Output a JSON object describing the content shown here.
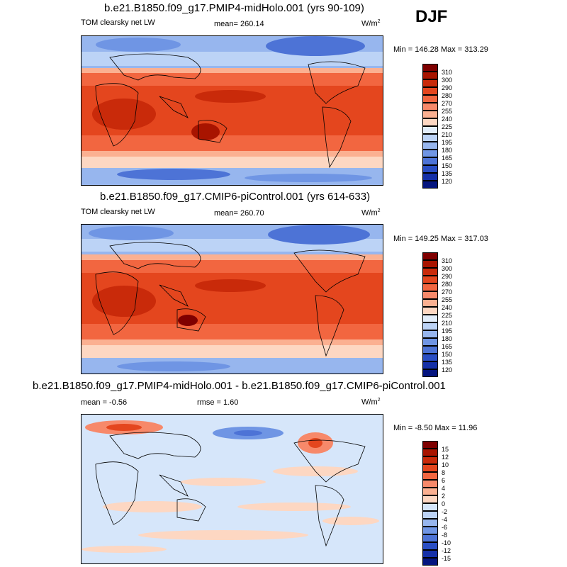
{
  "season": "DJF",
  "panels": [
    {
      "title": "b.e21.B1850.f09_g17.PMIP4-midHolo.001 (yrs 90-109)",
      "left": "TOM clearsky net LW",
      "mid": "mean= 260.14",
      "units": "W/m",
      "units_sup": "2",
      "minmax": "Min = 146.28 Max = 313.29",
      "levels": [
        "310",
        "300",
        "290",
        "280",
        "270",
        "255",
        "240",
        "225",
        "210",
        "195",
        "180",
        "165",
        "150",
        "135",
        "120"
      ],
      "colors": [
        "#7f0000",
        "#a81400",
        "#c92a0a",
        "#e4461e",
        "#f26640",
        "#f7896a",
        "#fbb091",
        "#fdd7c2",
        "#e2edfa",
        "#bcd3f6",
        "#97b6ee",
        "#6f95e4",
        "#4d73d6",
        "#2a4ec4",
        "#1530a8",
        "#05157f"
      ]
    },
    {
      "title": "b.e21.B1850.f09_g17.CMIP6-piControl.001 (yrs 614-633)",
      "left": "TOM clearsky net LW",
      "mid": "mean= 260.70",
      "units": "W/m",
      "units_sup": "2",
      "minmax": "Min = 149.25 Max = 317.03",
      "levels": [
        "310",
        "300",
        "290",
        "280",
        "270",
        "255",
        "240",
        "225",
        "210",
        "195",
        "180",
        "165",
        "150",
        "135",
        "120"
      ],
      "colors": [
        "#7f0000",
        "#a81400",
        "#c92a0a",
        "#e4461e",
        "#f26640",
        "#f7896a",
        "#fbb091",
        "#fdd7c2",
        "#e2edfa",
        "#bcd3f6",
        "#97b6ee",
        "#6f95e4",
        "#4d73d6",
        "#2a4ec4",
        "#1530a8",
        "#05157f"
      ]
    },
    {
      "title": "b.e21.B1850.f09_g17.PMIP4-midHolo.001 - b.e21.B1850.f09_g17.CMIP6-piControl.001",
      "left": "mean =  -0.56",
      "mid": "rmse =   1.60",
      "units": "W/m",
      "units_sup": "2",
      "minmax": "Min =  -8.50 Max =  11.96",
      "levels": [
        "15",
        "12",
        "10",
        "8",
        "6",
        "4",
        "2",
        "0",
        "-2",
        "-4",
        "-6",
        "-8",
        "-10",
        "-12",
        "-15"
      ],
      "colors": [
        "#7f0000",
        "#a81400",
        "#c92a0a",
        "#e4461e",
        "#f26640",
        "#f7896a",
        "#fbb091",
        "#fdd7c2",
        "#d6e6fa",
        "#bcd3f6",
        "#97b6ee",
        "#6f95e4",
        "#4d73d6",
        "#2a4ec4",
        "#1530a8",
        "#05157f"
      ]
    }
  ],
  "chart_data": [
    {
      "type": "heatmap",
      "title": "b.e21.B1850.f09_g17.PMIP4-midHolo.001 (yrs 90-109)",
      "mean": 260.14,
      "min": 146.28,
      "max": 313.29
    },
    {
      "type": "heatmap",
      "title": "b.e21.B1850.f09_g17.CMIP6-piControl.001 (yrs 614-633)",
      "mean": 260.7,
      "min": 149.25,
      "max": 317.03
    },
    {
      "type": "heatmap",
      "title": "b.e21.B1850.f09_g17.PMIP4-midHolo.001 - b.e21.B1850.f09_g17.CMIP6-piControl.001",
      "mean": -0.56,
      "rmse": 1.6,
      "min": -8.5,
      "max": 11.96
    }
  ]
}
